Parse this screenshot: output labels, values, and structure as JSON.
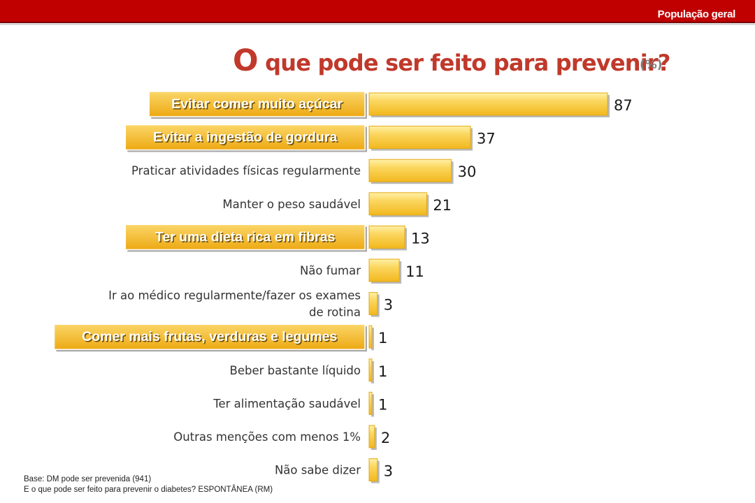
{
  "header": {
    "segment_label": "População geral"
  },
  "title": {
    "lead": "O",
    "rest": "que pode ser feito para prevenir?",
    "unit": "(%)"
  },
  "footnote": {
    "base": "Base: DM pode ser prevenida (941)",
    "question": "E o que pode ser feito para prevenir o diabetes? ESPONTÂNEA (RM)"
  },
  "colors": {
    "header": "#c00000",
    "bar": "#f6c944",
    "highlight": "#f0b21c",
    "title": "#c0392b"
  },
  "chart_data": {
    "type": "bar",
    "orientation": "horizontal",
    "categories": [
      "Evitar comer muito açúcar",
      "Evitar a ingestão de gordura",
      "Praticar atividades físicas regularmente",
      "Manter o peso saudável",
      "Ter uma dieta rica em fibras",
      "Não fumar",
      "Ir ao médico regularmente/fazer os exames de rotina",
      "Comer mais frutas, verduras e legumes",
      "Beber bastante líquido",
      "Ter alimentação saudável",
      "Outras menções com menos 1%",
      "Não sabe dizer"
    ],
    "values": [
      87,
      37,
      30,
      21,
      13,
      11,
      3,
      1,
      1,
      1,
      2,
      3
    ],
    "highlighted": [
      true,
      true,
      false,
      false,
      true,
      false,
      false,
      true,
      false,
      false,
      false,
      false
    ],
    "xlim": [
      0,
      100
    ],
    "data_labels": true,
    "grid": false,
    "legend": "none"
  }
}
